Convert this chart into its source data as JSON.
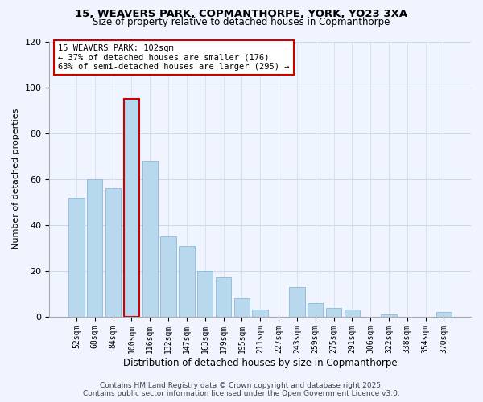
{
  "title1": "15, WEAVERS PARK, COPMANTHORPE, YORK, YO23 3XA",
  "title2": "Size of property relative to detached houses in Copmanthorpe",
  "xlabel": "Distribution of detached houses by size in Copmanthorpe",
  "ylabel": "Number of detached properties",
  "bar_labels": [
    "52sqm",
    "68sqm",
    "84sqm",
    "100sqm",
    "116sqm",
    "132sqm",
    "147sqm",
    "163sqm",
    "179sqm",
    "195sqm",
    "211sqm",
    "227sqm",
    "243sqm",
    "259sqm",
    "275sqm",
    "291sqm",
    "306sqm",
    "322sqm",
    "338sqm",
    "354sqm",
    "370sqm"
  ],
  "bar_values": [
    52,
    60,
    56,
    95,
    68,
    35,
    31,
    20,
    17,
    8,
    3,
    0,
    13,
    6,
    4,
    3,
    0,
    1,
    0,
    0,
    2
  ],
  "bar_color": "#b8d8ee",
  "bar_edge_color": "#8ab8d8",
  "highlight_bar_index": 3,
  "highlight_bar_edge_color": "#cc0000",
  "annotation_box_text": "15 WEAVERS PARK: 102sqm\n← 37% of detached houses are smaller (176)\n63% of semi-detached houses are larger (295) →",
  "annotation_box_color": "white",
  "annotation_box_edge_color": "#cc0000",
  "ylim": [
    0,
    120
  ],
  "yticks": [
    0,
    20,
    40,
    60,
    80,
    100,
    120
  ],
  "footer_line1": "Contains HM Land Registry data © Crown copyright and database right 2025.",
  "footer_line2": "Contains public sector information licensed under the Open Government Licence v3.0.",
  "background_color": "#f0f4ff",
  "grid_color": "#d0d8f0"
}
